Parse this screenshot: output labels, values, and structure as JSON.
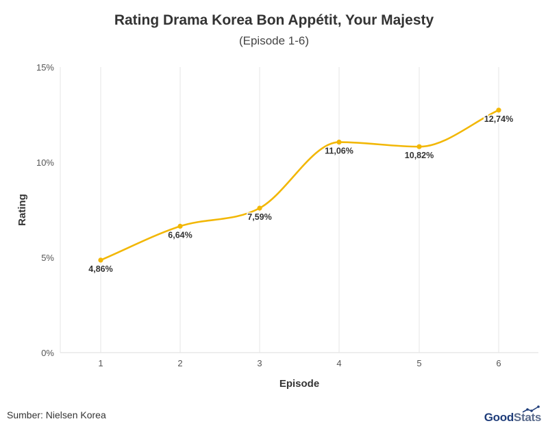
{
  "header": {
    "title": "Rating Drama Korea Bon Appétit, Your Majesty",
    "subtitle": "(Episode 1-6)"
  },
  "footer": {
    "source": "Sumber: Nielsen Korea",
    "logo_part1": "Good",
    "logo_part2": "Stats"
  },
  "colors": {
    "line": "#f2b705",
    "grid": "#e6e6e6",
    "text": "#333333",
    "brand": "#1f3d7a"
  },
  "chart_data": {
    "type": "line",
    "title": "Rating Drama Korea Bon Appétit, Your Majesty",
    "subtitle": "(Episode 1-6)",
    "xlabel": "Episode",
    "ylabel": "Rating",
    "categories": [
      "1",
      "2",
      "3",
      "4",
      "5",
      "6"
    ],
    "series": [
      {
        "values": [
          4.86,
          6.64,
          7.59,
          11.06,
          10.82,
          12.74
        ],
        "labels": [
          "4,86%",
          "6,64%",
          "7,59%",
          "11,06%",
          "10,82%",
          "12,74%"
        ]
      }
    ],
    "ylim": [
      0,
      15
    ],
    "yticks": [
      0,
      5,
      10,
      15
    ],
    "ytick_labels": [
      "0%",
      "5%",
      "10%",
      "15%"
    ],
    "grid": "vertical",
    "legend": "none",
    "smooth": true
  }
}
